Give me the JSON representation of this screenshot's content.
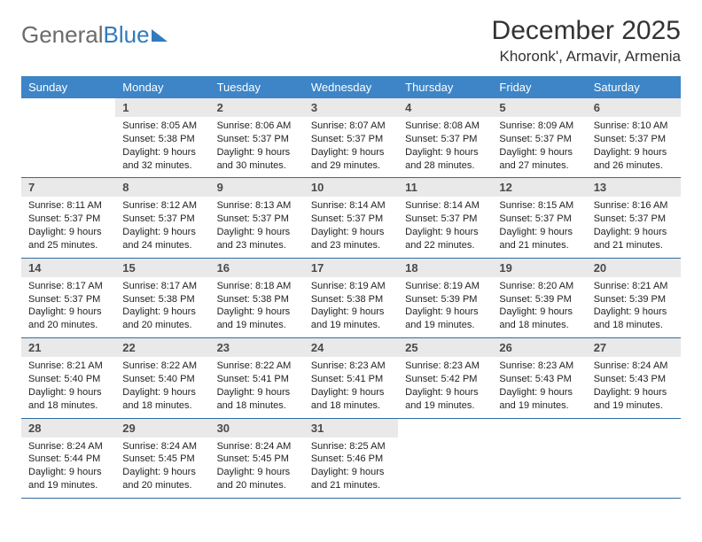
{
  "logo": {
    "text_gray": "General",
    "text_blue": "Blue"
  },
  "title": "December 2025",
  "location": "Khoronk', Armavir, Armenia",
  "colors": {
    "header_bg": "#3d85c6",
    "header_text": "#ffffff",
    "daynum_bg": "#e9e9e9",
    "week_divider": "#2f6da3",
    "logo_gray": "#6b6b6b",
    "logo_blue": "#2f7bbf"
  },
  "day_headers": [
    "Sunday",
    "Monday",
    "Tuesday",
    "Wednesday",
    "Thursday",
    "Friday",
    "Saturday"
  ],
  "weeks": [
    [
      {
        "empty": true,
        "num": "",
        "sun": "",
        "set": "",
        "day1": "",
        "day2": ""
      },
      {
        "num": "1",
        "sun": "Sunrise: 8:05 AM",
        "set": "Sunset: 5:38 PM",
        "day1": "Daylight: 9 hours",
        "day2": "and 32 minutes."
      },
      {
        "num": "2",
        "sun": "Sunrise: 8:06 AM",
        "set": "Sunset: 5:37 PM",
        "day1": "Daylight: 9 hours",
        "day2": "and 30 minutes."
      },
      {
        "num": "3",
        "sun": "Sunrise: 8:07 AM",
        "set": "Sunset: 5:37 PM",
        "day1": "Daylight: 9 hours",
        "day2": "and 29 minutes."
      },
      {
        "num": "4",
        "sun": "Sunrise: 8:08 AM",
        "set": "Sunset: 5:37 PM",
        "day1": "Daylight: 9 hours",
        "day2": "and 28 minutes."
      },
      {
        "num": "5",
        "sun": "Sunrise: 8:09 AM",
        "set": "Sunset: 5:37 PM",
        "day1": "Daylight: 9 hours",
        "day2": "and 27 minutes."
      },
      {
        "num": "6",
        "sun": "Sunrise: 8:10 AM",
        "set": "Sunset: 5:37 PM",
        "day1": "Daylight: 9 hours",
        "day2": "and 26 minutes."
      }
    ],
    [
      {
        "num": "7",
        "sun": "Sunrise: 8:11 AM",
        "set": "Sunset: 5:37 PM",
        "day1": "Daylight: 9 hours",
        "day2": "and 25 minutes."
      },
      {
        "num": "8",
        "sun": "Sunrise: 8:12 AM",
        "set": "Sunset: 5:37 PM",
        "day1": "Daylight: 9 hours",
        "day2": "and 24 minutes."
      },
      {
        "num": "9",
        "sun": "Sunrise: 8:13 AM",
        "set": "Sunset: 5:37 PM",
        "day1": "Daylight: 9 hours",
        "day2": "and 23 minutes."
      },
      {
        "num": "10",
        "sun": "Sunrise: 8:14 AM",
        "set": "Sunset: 5:37 PM",
        "day1": "Daylight: 9 hours",
        "day2": "and 23 minutes."
      },
      {
        "num": "11",
        "sun": "Sunrise: 8:14 AM",
        "set": "Sunset: 5:37 PM",
        "day1": "Daylight: 9 hours",
        "day2": "and 22 minutes."
      },
      {
        "num": "12",
        "sun": "Sunrise: 8:15 AM",
        "set": "Sunset: 5:37 PM",
        "day1": "Daylight: 9 hours",
        "day2": "and 21 minutes."
      },
      {
        "num": "13",
        "sun": "Sunrise: 8:16 AM",
        "set": "Sunset: 5:37 PM",
        "day1": "Daylight: 9 hours",
        "day2": "and 21 minutes."
      }
    ],
    [
      {
        "num": "14",
        "sun": "Sunrise: 8:17 AM",
        "set": "Sunset: 5:37 PM",
        "day1": "Daylight: 9 hours",
        "day2": "and 20 minutes."
      },
      {
        "num": "15",
        "sun": "Sunrise: 8:17 AM",
        "set": "Sunset: 5:38 PM",
        "day1": "Daylight: 9 hours",
        "day2": "and 20 minutes."
      },
      {
        "num": "16",
        "sun": "Sunrise: 8:18 AM",
        "set": "Sunset: 5:38 PM",
        "day1": "Daylight: 9 hours",
        "day2": "and 19 minutes."
      },
      {
        "num": "17",
        "sun": "Sunrise: 8:19 AM",
        "set": "Sunset: 5:38 PM",
        "day1": "Daylight: 9 hours",
        "day2": "and 19 minutes."
      },
      {
        "num": "18",
        "sun": "Sunrise: 8:19 AM",
        "set": "Sunset: 5:39 PM",
        "day1": "Daylight: 9 hours",
        "day2": "and 19 minutes."
      },
      {
        "num": "19",
        "sun": "Sunrise: 8:20 AM",
        "set": "Sunset: 5:39 PM",
        "day1": "Daylight: 9 hours",
        "day2": "and 18 minutes."
      },
      {
        "num": "20",
        "sun": "Sunrise: 8:21 AM",
        "set": "Sunset: 5:39 PM",
        "day1": "Daylight: 9 hours",
        "day2": "and 18 minutes."
      }
    ],
    [
      {
        "num": "21",
        "sun": "Sunrise: 8:21 AM",
        "set": "Sunset: 5:40 PM",
        "day1": "Daylight: 9 hours",
        "day2": "and 18 minutes."
      },
      {
        "num": "22",
        "sun": "Sunrise: 8:22 AM",
        "set": "Sunset: 5:40 PM",
        "day1": "Daylight: 9 hours",
        "day2": "and 18 minutes."
      },
      {
        "num": "23",
        "sun": "Sunrise: 8:22 AM",
        "set": "Sunset: 5:41 PM",
        "day1": "Daylight: 9 hours",
        "day2": "and 18 minutes."
      },
      {
        "num": "24",
        "sun": "Sunrise: 8:23 AM",
        "set": "Sunset: 5:41 PM",
        "day1": "Daylight: 9 hours",
        "day2": "and 18 minutes."
      },
      {
        "num": "25",
        "sun": "Sunrise: 8:23 AM",
        "set": "Sunset: 5:42 PM",
        "day1": "Daylight: 9 hours",
        "day2": "and 19 minutes."
      },
      {
        "num": "26",
        "sun": "Sunrise: 8:23 AM",
        "set": "Sunset: 5:43 PM",
        "day1": "Daylight: 9 hours",
        "day2": "and 19 minutes."
      },
      {
        "num": "27",
        "sun": "Sunrise: 8:24 AM",
        "set": "Sunset: 5:43 PM",
        "day1": "Daylight: 9 hours",
        "day2": "and 19 minutes."
      }
    ],
    [
      {
        "num": "28",
        "sun": "Sunrise: 8:24 AM",
        "set": "Sunset: 5:44 PM",
        "day1": "Daylight: 9 hours",
        "day2": "and 19 minutes."
      },
      {
        "num": "29",
        "sun": "Sunrise: 8:24 AM",
        "set": "Sunset: 5:45 PM",
        "day1": "Daylight: 9 hours",
        "day2": "and 20 minutes."
      },
      {
        "num": "30",
        "sun": "Sunrise: 8:24 AM",
        "set": "Sunset: 5:45 PM",
        "day1": "Daylight: 9 hours",
        "day2": "and 20 minutes."
      },
      {
        "num": "31",
        "sun": "Sunrise: 8:25 AM",
        "set": "Sunset: 5:46 PM",
        "day1": "Daylight: 9 hours",
        "day2": "and 21 minutes."
      },
      {
        "empty": true,
        "num": "",
        "sun": "",
        "set": "",
        "day1": "",
        "day2": ""
      },
      {
        "empty": true,
        "num": "",
        "sun": "",
        "set": "",
        "day1": "",
        "day2": ""
      },
      {
        "empty": true,
        "num": "",
        "sun": "",
        "set": "",
        "day1": "",
        "day2": ""
      }
    ]
  ]
}
